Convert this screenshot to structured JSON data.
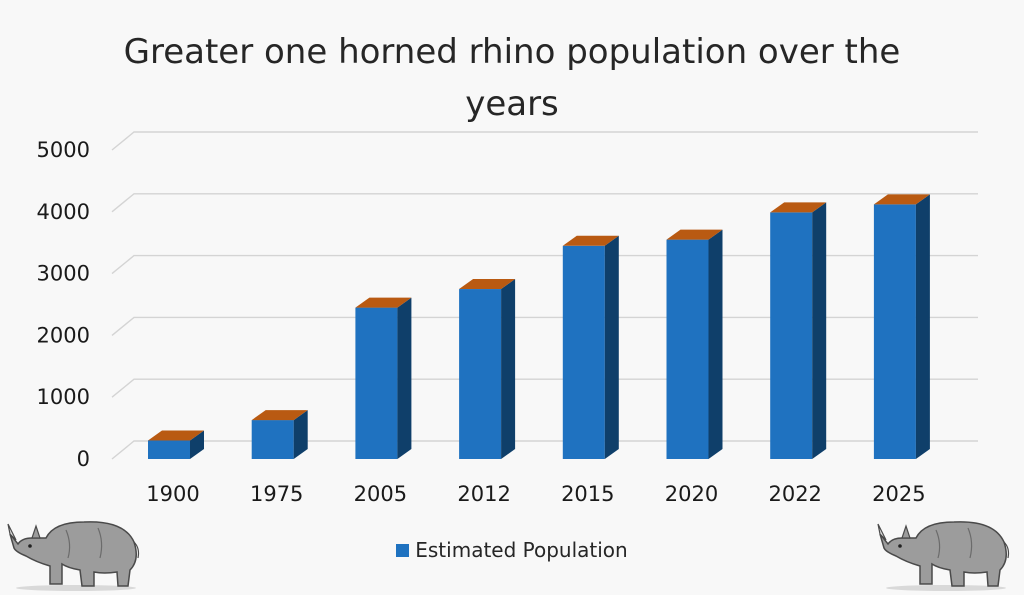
{
  "colors": {
    "bar_front": "#1f72c0",
    "bar_side": "#0f3f6a",
    "bar_top": "#b95a12",
    "grid": "#d4d4d4",
    "rhino_body": "#9c9c9c",
    "rhino_dark": "#5a5a5a"
  },
  "icons": [
    "rhino-left-illustration",
    "rhino-right-illustration"
  ],
  "chart_data": {
    "type": "bar",
    "title": "Greater one horned rhino population over the years",
    "categories": [
      "1900",
      "1975",
      "2005",
      "2012",
      "2015",
      "2020",
      "2022",
      "2025"
    ],
    "series": [
      {
        "name": "Estimated Population",
        "values": [
          300,
          630,
          2450,
          2750,
          3450,
          3550,
          3990,
          4120
        ]
      }
    ],
    "ylim": [
      0,
      5000
    ],
    "yticks": [
      0,
      1000,
      2000,
      3000,
      4000,
      5000
    ],
    "grid": true,
    "legend_position": "bottom"
  }
}
